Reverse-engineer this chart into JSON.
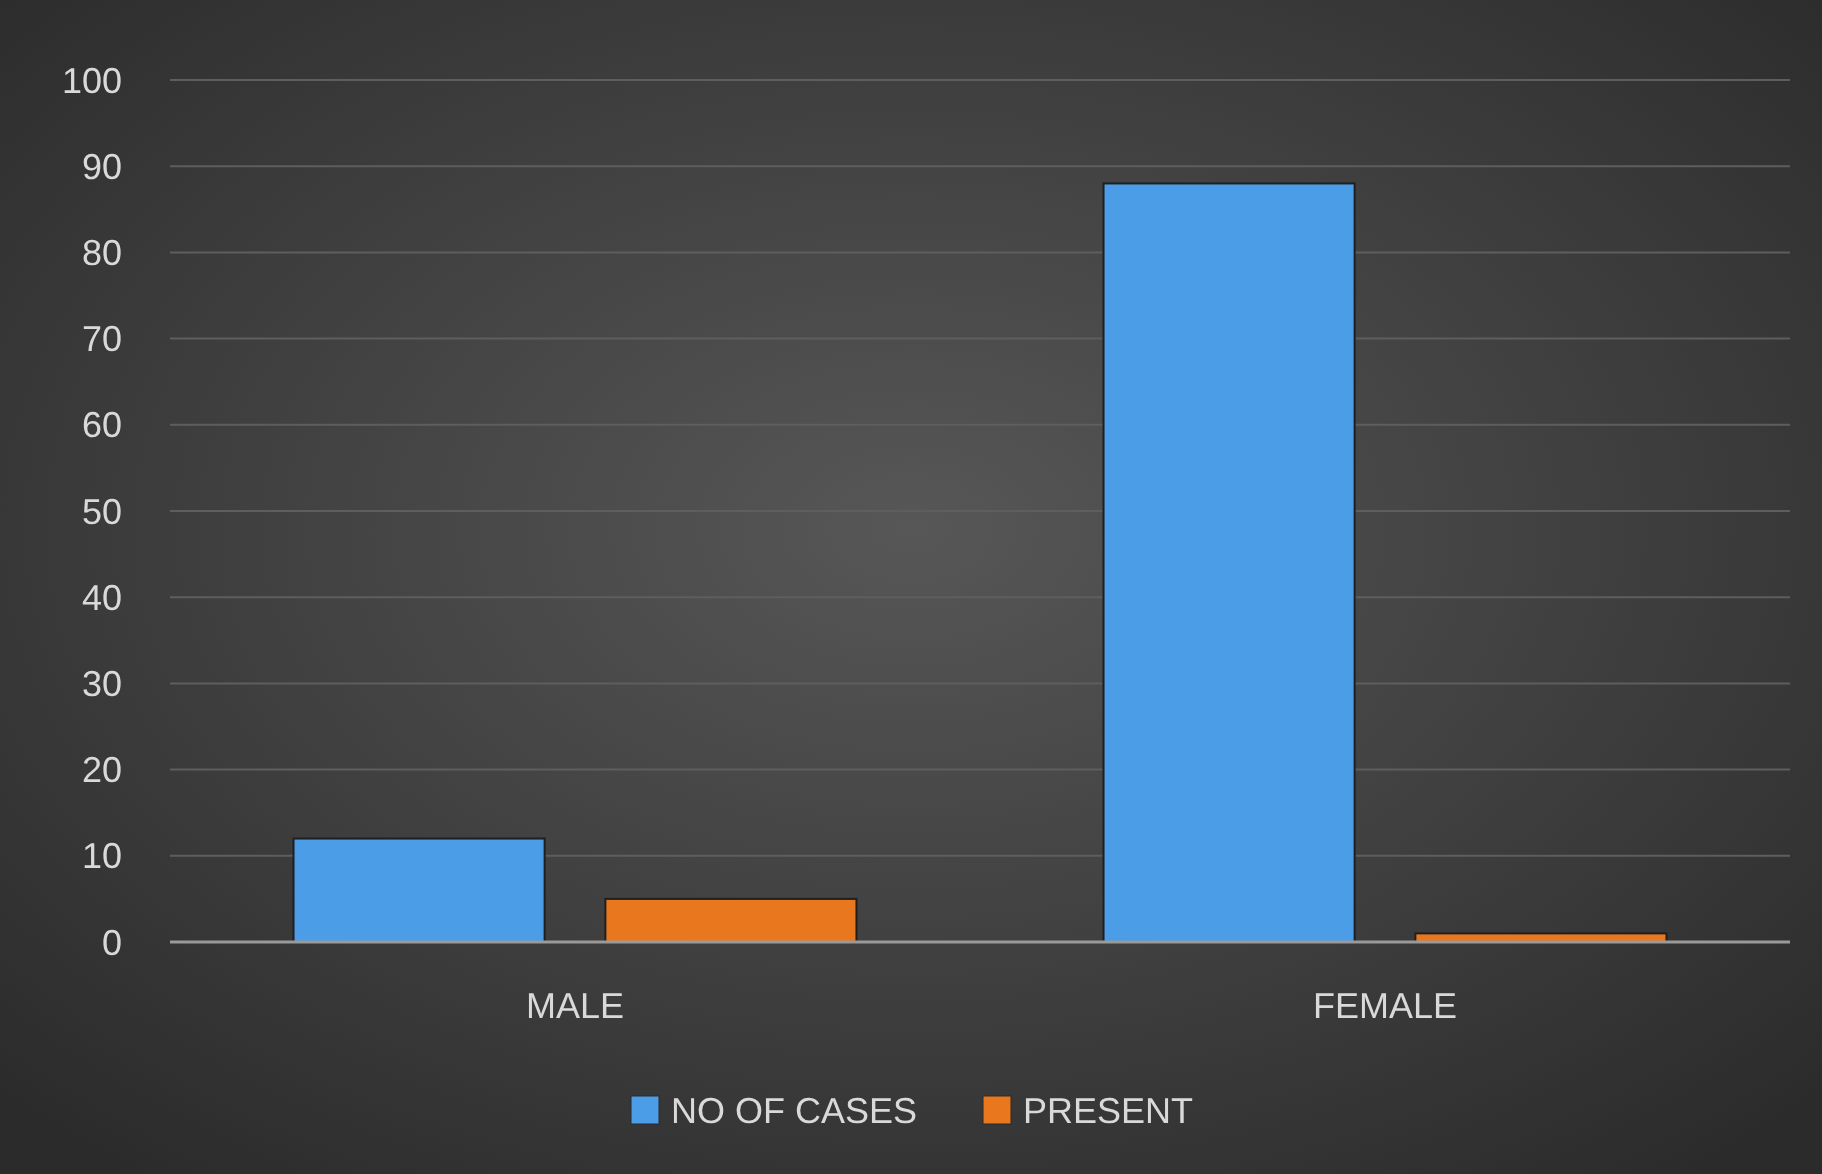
{
  "chart_data": {
    "type": "bar",
    "categories": [
      "MALE",
      "FEMALE"
    ],
    "series": [
      {
        "name": "NO OF CASES",
        "color": "#4a9de6",
        "values": [
          12,
          88
        ]
      },
      {
        "name": "PRESENT",
        "color": "#e8771e",
        "values": [
          5,
          1
        ]
      }
    ],
    "ylim": [
      0,
      100
    ],
    "yticks": [
      0,
      10,
      20,
      30,
      40,
      50,
      60,
      70,
      80,
      90,
      100
    ],
    "grid": "y",
    "legend": "bottom"
  }
}
